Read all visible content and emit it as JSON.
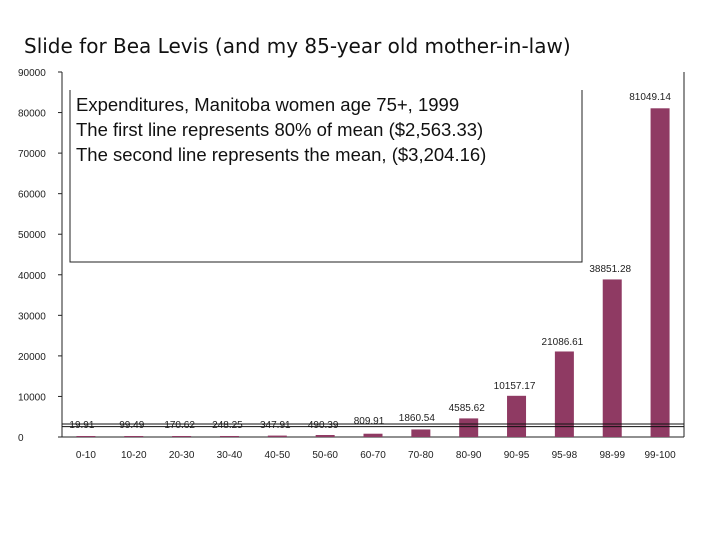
{
  "slide": {
    "title": "Slide for Bea Levis (and my 85-year old mother-in-law)"
  },
  "chart_data": {
    "type": "bar",
    "categories": [
      "0-10",
      "10-20",
      "20-30",
      "30-40",
      "40-50",
      "50-60",
      "60-70",
      "70-80",
      "80-90",
      "90-95",
      "95-98",
      "98-99",
      "99-100"
    ],
    "values": [
      19.91,
      99.49,
      170.62,
      248.25,
      347.91,
      490.39,
      809.91,
      1860.54,
      4585.62,
      10157.17,
      21086.61,
      38851.28,
      81049.14
    ],
    "data_labels": [
      "19.91",
      "99.49",
      "170.62",
      "248.25",
      "347.91",
      "490.39",
      "809.91",
      "1860.54",
      "4585.62",
      "10157.17",
      "21086.61",
      "38851.28",
      "81049.14"
    ],
    "ylim": [
      0,
      90000
    ],
    "yticks": [
      0,
      10000,
      20000,
      30000,
      40000,
      50000,
      60000,
      70000,
      80000,
      90000
    ],
    "reference_lines": [
      2563.33,
      3204.16
    ],
    "bar_color": "#8f3a63",
    "annotation_lines": [
      "Expenditures, Manitoba women age 75+, 1999",
      "The first line represents 80% of mean ($2,563.33)",
      "The second line represents the mean, ($3,204.16)"
    ],
    "xlabel": "",
    "ylabel": ""
  }
}
